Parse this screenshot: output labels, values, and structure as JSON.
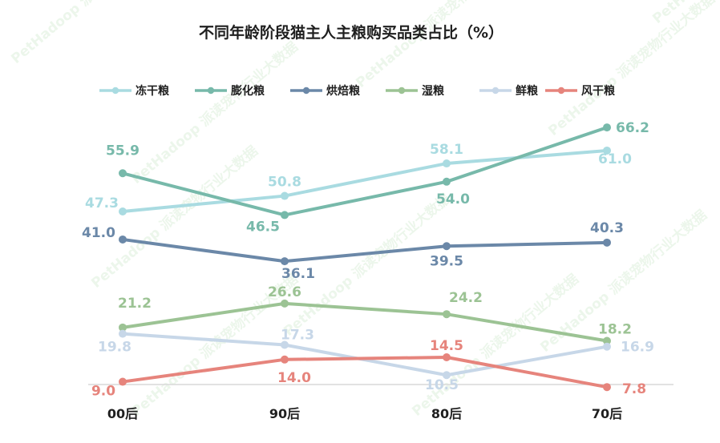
{
  "chart_data": {
    "type": "line",
    "title": "不同年龄阶段猫主人主粮购买品类占比（%）",
    "xlabel": "",
    "ylabel": "",
    "categories": [
      "00后",
      "90后",
      "80后",
      "70后"
    ],
    "ylim": [
      0,
      75
    ],
    "grid": false,
    "legend_position": "top",
    "series": [
      {
        "name": "冻干粮",
        "color": "#a9dbe1",
        "values": [
          47.3,
          50.8,
          58.1,
          61.0
        ]
      },
      {
        "name": "膨化粮",
        "color": "#77b9aa",
        "values": [
          55.9,
          46.5,
          54.0,
          66.2
        ]
      },
      {
        "name": "烘焙粮",
        "color": "#6b88a8",
        "values": [
          41.0,
          36.1,
          39.5,
          40.3
        ]
      },
      {
        "name": "湿粮",
        "color": "#9cc394",
        "values": [
          21.2,
          26.6,
          24.2,
          18.2
        ]
      },
      {
        "name": "鲜粮",
        "color": "#c7d7e8",
        "values": [
          19.8,
          17.3,
          10.5,
          16.9
        ]
      },
      {
        "name": "风干粮",
        "color": "#e6847c",
        "values": [
          9.0,
          14.0,
          14.5,
          7.8
        ]
      }
    ],
    "watermark": "PetHadoop 派读宠物行业大数据"
  }
}
